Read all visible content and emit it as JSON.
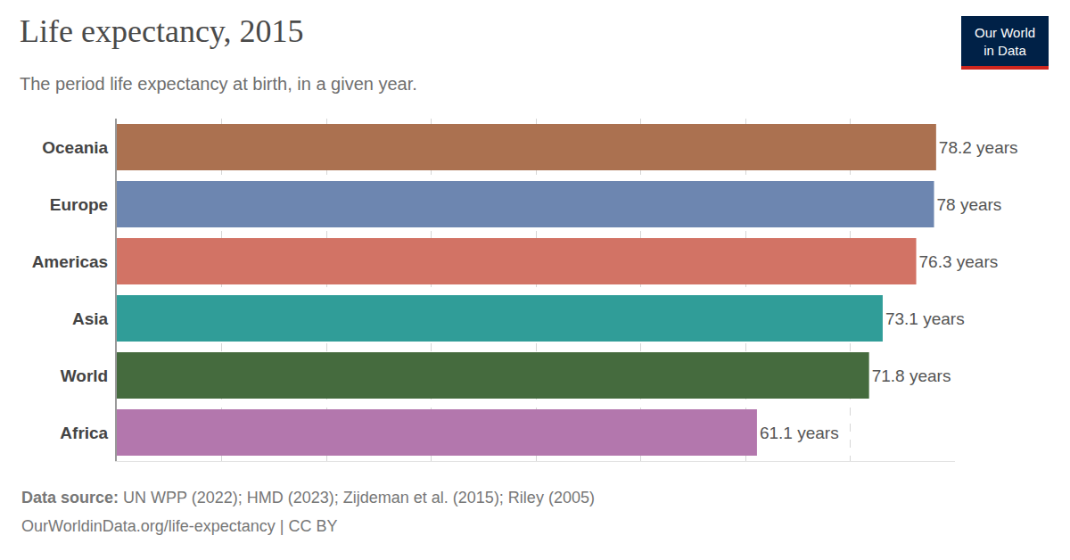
{
  "chart_data": {
    "type": "bar",
    "orientation": "horizontal",
    "title": "Life expectancy, 2015",
    "subtitle": "The period life expectancy at birth, in a given year.",
    "categories": [
      "Oceania",
      "Europe",
      "Americas",
      "Asia",
      "World",
      "Africa"
    ],
    "values": [
      78.2,
      78,
      76.3,
      73.1,
      71.8,
      61.1
    ],
    "value_labels": [
      "78.2 years",
      "78 years",
      "76.3 years",
      "73.1 years",
      "71.8 years",
      "61.1 years"
    ],
    "colors": [
      "#ab7150",
      "#6d86b0",
      "#d27365",
      "#309d98",
      "#456b3e",
      "#b377ad"
    ],
    "data_labels": true,
    "xlim": [
      0,
      80
    ],
    "xticks": [
      0,
      10,
      20,
      30,
      40,
      50,
      60,
      70
    ],
    "grid": true,
    "tick_labels": "y",
    "source": {
      "label": "Data source:",
      "text": "UN WPP (2022); HMD (2023); Zijdeman et al. (2015); Riley (2005)"
    },
    "footer": "OurWorldinData.org/life-expectancy | CC BY",
    "logo": [
      "Our World",
      "in Data"
    ]
  }
}
